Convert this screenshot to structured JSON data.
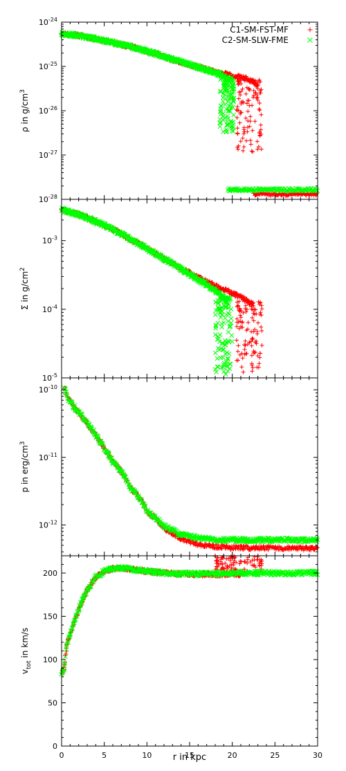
{
  "chart_data": {
    "type": "scatter",
    "shared_x": {
      "label": "r in kpc",
      "range": [
        0,
        30
      ],
      "ticks": [
        0,
        5,
        10,
        15,
        20,
        25,
        30
      ],
      "tick_labels": [
        "0",
        "5",
        "10",
        "15",
        "20",
        "25",
        "30"
      ]
    },
    "legend": {
      "placement": "top-right",
      "entries": [
        {
          "name": "C1-SM-FST-MF",
          "marker": "+",
          "color": "#ff0000"
        },
        {
          "name": "C2-SM-SLW-FME",
          "marker": "x",
          "color": "#00ff00"
        }
      ]
    },
    "panels": [
      {
        "id": "density",
        "ylabel": {
          "base": "ρ in g/cm",
          "sup": "3"
        },
        "yscale": "log",
        "ylim": [
          1e-28,
          1e-24
        ],
        "yticks": [
          {
            "value": 1e-24,
            "mant": "10",
            "exp": "-24"
          },
          {
            "value": 1e-25,
            "mant": "10",
            "exp": "-25"
          },
          {
            "value": 1e-26,
            "mant": "10",
            "exp": "-26"
          },
          {
            "value": 1e-27,
            "mant": "10",
            "exp": "-27"
          },
          {
            "value": 1e-28,
            "mant": "10",
            "exp": "-28"
          }
        ],
        "series": [
          {
            "name": "C1-SM-FST-MF",
            "band": [
              [
                0,
                5.5e-25
              ],
              [
                2,
                5e-25
              ],
              [
                5,
                3.8e-25
              ],
              [
                8,
                2.8e-25
              ],
              [
                10,
                2.2e-25
              ],
              [
                12,
                1.65e-25
              ],
              [
                14,
                1.25e-25
              ],
              [
                16,
                9.5e-26
              ],
              [
                18,
                7.5e-26
              ],
              [
                20,
                6.2e-26
              ],
              [
                21.5,
                5.4e-26
              ],
              [
                22.5,
                4.5e-26
              ],
              [
                23,
                3.8e-26
              ]
            ],
            "scatter_zone": {
              "x": [
                20.5,
                23.5
              ],
              "y": [
                1e-27,
                5e-26
              ]
            },
            "floor": {
              "x": [
                22.5,
                30
              ],
              "y": 1.3e-28
            }
          },
          {
            "name": "C2-SM-SLW-FME",
            "band": [
              [
                0,
                5.5e-25
              ],
              [
                2,
                5e-25
              ],
              [
                5,
                3.8e-25
              ],
              [
                8,
                2.8e-25
              ],
              [
                10,
                2.2e-25
              ],
              [
                12,
                1.65e-25
              ],
              [
                14,
                1.25e-25
              ],
              [
                16,
                9.5e-26
              ],
              [
                17.5,
                7.8e-26
              ],
              [
                18.5,
                6.8e-26
              ],
              [
                19,
                6e-26
              ],
              [
                19.6,
                4.5e-26
              ]
            ],
            "scatter_zone": {
              "x": [
                18.5,
                20.2
              ],
              "y": [
                3e-27,
                6e-26
              ]
            },
            "floor": {
              "x": [
                19.5,
                30
              ],
              "y": 1.65e-28
            }
          }
        ]
      },
      {
        "id": "surface-density",
        "ylabel": {
          "base": "Σ in g/cm",
          "sup": "2"
        },
        "yscale": "log",
        "ylim": [
          1e-05,
          0.004
        ],
        "yticks": [
          {
            "value": 0.001,
            "mant": "10",
            "exp": "-3"
          },
          {
            "value": 0.0001,
            "mant": "10",
            "exp": "-4"
          },
          {
            "value": 1e-05,
            "mant": "10",
            "exp": "-5"
          }
        ],
        "series": [
          {
            "name": "C1-SM-FST-MF",
            "band": [
              [
                0,
                0.0028
              ],
              [
                2,
                0.0024
              ],
              [
                4,
                0.0019
              ],
              [
                6,
                0.00145
              ],
              [
                8,
                0.00105
              ],
              [
                10,
                0.00076
              ],
              [
                12,
                0.00054
              ],
              [
                14,
                0.00039
              ],
              [
                16,
                0.00029
              ],
              [
                18,
                0.00022
              ],
              [
                20,
                0.00017
              ],
              [
                21.5,
                0.00014
              ],
              [
                22.5,
                0.000115
              ]
            ],
            "scatter_zone": {
              "x": [
                20.5,
                23.5
              ],
              "y": [
                1.2e-05,
                0.00013
              ]
            }
          },
          {
            "name": "C2-SM-SLW-FME",
            "band": [
              [
                0,
                0.0028
              ],
              [
                2,
                0.0024
              ],
              [
                4,
                0.0019
              ],
              [
                6,
                0.00145
              ],
              [
                8,
                0.00105
              ],
              [
                10,
                0.00076
              ],
              [
                12,
                0.00054
              ],
              [
                14,
                0.00038
              ],
              [
                16,
                0.00027
              ],
              [
                17.5,
                0.000205
              ],
              [
                18.5,
                0.00017
              ],
              [
                19.5,
                0.00013
              ]
            ],
            "scatter_zone": {
              "x": [
                18,
                20
              ],
              "y": [
                1.1e-05,
                0.00015
              ]
            }
          }
        ]
      },
      {
        "id": "pressure",
        "ylabel": {
          "base": "p in erg/cm",
          "sup": "3"
        },
        "yscale": "log",
        "ylim": [
          3.5e-13,
          1.5e-10
        ],
        "yticks": [
          {
            "value": 1e-10,
            "mant": "10",
            "exp": "-10"
          },
          {
            "value": 1e-11,
            "mant": "10",
            "exp": "-11"
          },
          {
            "value": 1e-12,
            "mant": "10",
            "exp": "-12"
          }
        ],
        "series": [
          {
            "name": "C1-SM-FST-MF",
            "band": [
              [
                0.3,
                1.1e-10
              ],
              [
                0.7,
                7.5e-11
              ],
              [
                1.5,
                5.5e-11
              ],
              [
                2.5,
                3.8e-11
              ],
              [
                4,
                2.1e-11
              ],
              [
                5,
                1.35e-11
              ],
              [
                6,
                8.5e-12
              ],
              [
                8,
                3.6e-12
              ],
              [
                10,
                1.6e-12
              ],
              [
                12,
                8.8e-13
              ],
              [
                14,
                6.2e-13
              ],
              [
                16,
                5.2e-13
              ],
              [
                18,
                4.8e-13
              ],
              [
                20,
                4.6e-13
              ],
              [
                30,
                4.5e-13
              ]
            ]
          },
          {
            "name": "C2-SM-SLW-FME",
            "band": [
              [
                0.3,
                1.1e-10
              ],
              [
                0.7,
                7.5e-11
              ],
              [
                1.5,
                5.5e-11
              ],
              [
                2.5,
                3.8e-11
              ],
              [
                4,
                2.1e-11
              ],
              [
                5,
                1.35e-11
              ],
              [
                6,
                8.5e-12
              ],
              [
                8,
                3.6e-12
              ],
              [
                10,
                1.6e-12
              ],
              [
                12,
                9.5e-13
              ],
              [
                14,
                7.2e-13
              ],
              [
                16,
                6.4e-13
              ],
              [
                18,
                6.1e-13
              ],
              [
                20,
                6e-13
              ],
              [
                30,
                6e-13
              ]
            ]
          }
        ]
      },
      {
        "id": "velocity",
        "ylabel": {
          "base": "v",
          "sub": "tot",
          "rest": " in km/s"
        },
        "yscale": "linear",
        "ylim": [
          0,
          220
        ],
        "yticks": [
          {
            "value": 0,
            "label": "0"
          },
          {
            "value": 50,
            "label": "50"
          },
          {
            "value": 100,
            "label": "100"
          },
          {
            "value": 150,
            "label": "150"
          },
          {
            "value": 200,
            "label": "200"
          }
        ],
        "series": [
          {
            "name": "C1-SM-FST-MF",
            "band": [
              [
                0,
                85
              ],
              [
                0.3,
                88
              ],
              [
                0.6,
                118
              ],
              [
                1,
                128
              ],
              [
                1.5,
                145
              ],
              [
                2,
                158
              ],
              [
                2.5,
                170
              ],
              [
                3,
                180
              ],
              [
                4,
                195
              ],
              [
                5,
                202
              ],
              [
                6,
                205
              ],
              [
                7,
                206
              ],
              [
                8,
                205
              ],
              [
                10,
                202
              ],
              [
                12,
                200
              ],
              [
                14,
                199
              ],
              [
                16,
                198.5
              ],
              [
                18,
                198.5
              ],
              [
                21,
                198.5
              ]
            ],
            "scatter_zone": {
              "x": [
                18,
                23.5
              ],
              "y": [
                198,
                220
              ]
            }
          },
          {
            "name": "C2-SM-SLW-FME",
            "band": [
              [
                0,
                85
              ],
              [
                0.3,
                88
              ],
              [
                0.6,
                118
              ],
              [
                1,
                128
              ],
              [
                1.5,
                145
              ],
              [
                2,
                158
              ],
              [
                2.5,
                170
              ],
              [
                3,
                180
              ],
              [
                4,
                195
              ],
              [
                5,
                202
              ],
              [
                6,
                205
              ],
              [
                7,
                206
              ],
              [
                8,
                205
              ],
              [
                10,
                202
              ],
              [
                12,
                200
              ],
              [
                14,
                199
              ],
              [
                16,
                199
              ],
              [
                18,
                199.5
              ],
              [
                20,
                200
              ],
              [
                30,
                200
              ]
            ]
          }
        ]
      }
    ]
  }
}
